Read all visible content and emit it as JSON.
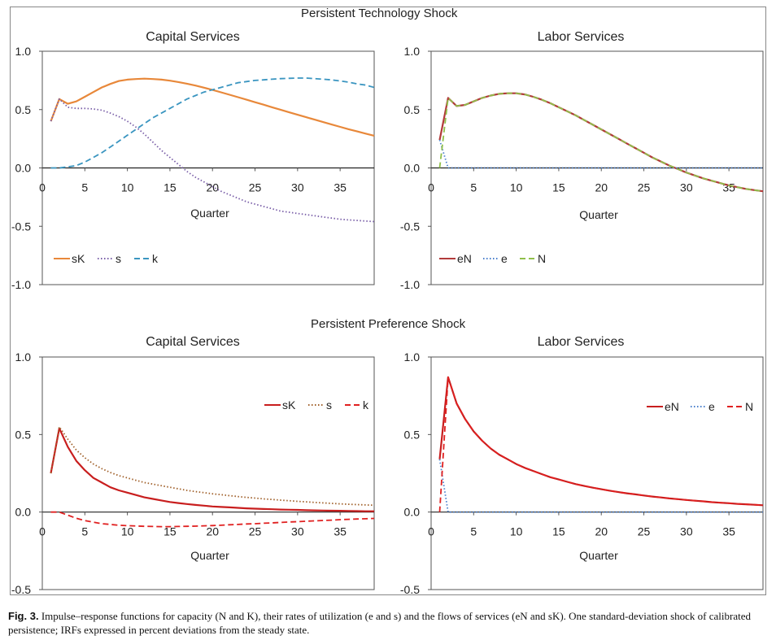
{
  "section_titles": {
    "top": "Persistent Technology Shock",
    "bottom": "Persistent Preference Shock"
  },
  "caption": {
    "label": "Fig. 3.",
    "text": " Impulse–response functions for capacity (N and K), their rates of utilization (e and s) and the flows of services (eN and sK). One standard-deviation shock of calibrated persistence; IRFs expressed in percent deviations from the steady state."
  },
  "colors": {
    "orange": "#E8883A",
    "purple": "#7A5FA8",
    "teal": "#3A95C0",
    "maroon": "#B23A3A",
    "blue_dot": "#4A7FCC",
    "green_dash": "#8FBF4A",
    "red": "#D42020",
    "brown_dot": "#A0602A"
  },
  "chart_data": [
    {
      "type": "line",
      "title": "Capital Services",
      "xlabel": "Quarter",
      "xlim": [
        0,
        39
      ],
      "ylim": [
        -1.0,
        1.0
      ],
      "xticks": [
        0,
        5,
        10,
        15,
        20,
        25,
        30,
        35
      ],
      "yticks": [
        "1.0",
        "0.5",
        "0.0",
        "-0.5",
        "-1.0"
      ],
      "legend_position": "bottom-left",
      "x": [
        1,
        2,
        3,
        4,
        5,
        6,
        7,
        8,
        9,
        10,
        11,
        12,
        13,
        14,
        15,
        16,
        17,
        18,
        19,
        20,
        21,
        22,
        23,
        24,
        25,
        26,
        27,
        28,
        29,
        30,
        31,
        32,
        33,
        34,
        35,
        36,
        37,
        38,
        39
      ],
      "series": [
        {
          "name": "sK",
          "style": "solid",
          "color": "#E8883A",
          "values": [
            0.4,
            0.59,
            0.55,
            0.57,
            0.61,
            0.65,
            0.69,
            0.72,
            0.745,
            0.757,
            0.762,
            0.765,
            0.762,
            0.757,
            0.748,
            0.736,
            0.722,
            0.706,
            0.688,
            0.668,
            0.648,
            0.627,
            0.606,
            0.585,
            0.563,
            0.542,
            0.52,
            0.499,
            0.477,
            0.456,
            0.435,
            0.414,
            0.393,
            0.372,
            0.352,
            0.332,
            0.313,
            0.294,
            0.276
          ]
        },
        {
          "name": "s",
          "style": "dotted",
          "color": "#7A5FA8",
          "values": [
            0.4,
            0.59,
            0.52,
            0.51,
            0.51,
            0.505,
            0.495,
            0.47,
            0.44,
            0.4,
            0.35,
            0.29,
            0.22,
            0.15,
            0.09,
            0.03,
            -0.03,
            -0.08,
            -0.12,
            -0.16,
            -0.2,
            -0.23,
            -0.26,
            -0.29,
            -0.31,
            -0.33,
            -0.35,
            -0.37,
            -0.38,
            -0.39,
            -0.4,
            -0.41,
            -0.42,
            -0.43,
            -0.44,
            -0.445,
            -0.45,
            -0.455,
            -0.46
          ]
        },
        {
          "name": "k",
          "style": "dashed",
          "color": "#3A95C0",
          "values": [
            0.0,
            0.0,
            0.01,
            0.02,
            0.05,
            0.09,
            0.13,
            0.18,
            0.23,
            0.28,
            0.33,
            0.38,
            0.43,
            0.47,
            0.51,
            0.55,
            0.59,
            0.62,
            0.65,
            0.67,
            0.69,
            0.71,
            0.73,
            0.74,
            0.75,
            0.755,
            0.76,
            0.765,
            0.768,
            0.77,
            0.77,
            0.765,
            0.76,
            0.755,
            0.745,
            0.735,
            0.72,
            0.71,
            0.69
          ]
        }
      ]
    },
    {
      "type": "line",
      "title": "Labor Services",
      "xlabel": "Quarter",
      "xlim": [
        0,
        39
      ],
      "ylim": [
        -1.0,
        1.0
      ],
      "xticks": [
        0,
        5,
        10,
        15,
        20,
        25,
        30,
        35
      ],
      "yticks": [
        "1.0",
        "0.5",
        "0.0",
        "-0.5",
        "-1.0"
      ],
      "legend_position": "bottom-left",
      "x": [
        1,
        2,
        3,
        4,
        5,
        6,
        7,
        8,
        9,
        10,
        11,
        12,
        13,
        14,
        15,
        16,
        17,
        18,
        19,
        20,
        21,
        22,
        23,
        24,
        25,
        26,
        27,
        28,
        29,
        30,
        31,
        32,
        33,
        34,
        35,
        36,
        37,
        38,
        39
      ],
      "series": [
        {
          "name": "eN",
          "style": "solid",
          "color": "#B23A3A",
          "values": [
            0.24,
            0.6,
            0.53,
            0.54,
            0.57,
            0.6,
            0.62,
            0.635,
            0.64,
            0.64,
            0.63,
            0.61,
            0.585,
            0.555,
            0.52,
            0.485,
            0.45,
            0.41,
            0.37,
            0.33,
            0.29,
            0.25,
            0.21,
            0.17,
            0.13,
            0.09,
            0.055,
            0.02,
            -0.01,
            -0.04,
            -0.065,
            -0.09,
            -0.11,
            -0.13,
            -0.15,
            -0.165,
            -0.18,
            -0.19,
            -0.2
          ]
        },
        {
          "name": "e",
          "style": "dotted",
          "color": "#4A7FCC",
          "values": [
            0.24,
            0.0,
            0.0,
            0.0,
            0.0,
            0.0,
            0.0,
            0.0,
            0.0,
            0.0,
            0.0,
            0.0,
            0.0,
            0.0,
            0.0,
            0.0,
            0.0,
            0.0,
            0.0,
            0.0,
            0.0,
            0.0,
            0.0,
            0.0,
            0.0,
            0.0,
            0.0,
            0.0,
            0.0,
            0.0,
            0.0,
            0.0,
            0.0,
            0.0,
            0.0,
            0.0,
            0.0,
            0.0,
            0.0
          ]
        },
        {
          "name": "N",
          "style": "dashed",
          "color": "#8FBF4A",
          "values": [
            0.0,
            0.6,
            0.53,
            0.54,
            0.57,
            0.6,
            0.62,
            0.635,
            0.64,
            0.64,
            0.63,
            0.61,
            0.585,
            0.555,
            0.52,
            0.485,
            0.45,
            0.41,
            0.37,
            0.33,
            0.29,
            0.25,
            0.21,
            0.17,
            0.13,
            0.09,
            0.055,
            0.02,
            -0.01,
            -0.04,
            -0.065,
            -0.09,
            -0.11,
            -0.13,
            -0.15,
            -0.165,
            -0.18,
            -0.19,
            -0.2
          ]
        }
      ]
    },
    {
      "type": "line",
      "title": "Capital Services",
      "xlabel": "Quarter",
      "xlim": [
        0,
        39
      ],
      "ylim": [
        -0.5,
        1.0
      ],
      "xticks": [
        0,
        5,
        10,
        15,
        20,
        25,
        30,
        35
      ],
      "yticks": [
        "1.0",
        "0.5",
        "0.0",
        "-0.5"
      ],
      "legend_position": "top-right",
      "x": [
        1,
        2,
        3,
        4,
        5,
        6,
        7,
        8,
        9,
        10,
        11,
        12,
        13,
        14,
        15,
        16,
        17,
        18,
        19,
        20,
        21,
        22,
        23,
        24,
        25,
        26,
        27,
        28,
        29,
        30,
        31,
        32,
        33,
        34,
        35,
        36,
        37,
        38,
        39
      ],
      "series": [
        {
          "name": "sK",
          "style": "solid",
          "color": "#C81E1E",
          "values": [
            0.25,
            0.54,
            0.42,
            0.33,
            0.27,
            0.22,
            0.19,
            0.16,
            0.14,
            0.125,
            0.11,
            0.095,
            0.085,
            0.075,
            0.065,
            0.058,
            0.052,
            0.046,
            0.041,
            0.036,
            0.033,
            0.03,
            0.027,
            0.024,
            0.022,
            0.02,
            0.018,
            0.016,
            0.015,
            0.014,
            0.012,
            0.011,
            0.01,
            0.009,
            0.008,
            0.007,
            0.006,
            0.005,
            0.005
          ]
        },
        {
          "name": "s",
          "style": "dotted",
          "color": "#A0602A",
          "values": [
            0.25,
            0.55,
            0.47,
            0.4,
            0.35,
            0.31,
            0.28,
            0.255,
            0.235,
            0.22,
            0.205,
            0.19,
            0.18,
            0.17,
            0.16,
            0.15,
            0.14,
            0.132,
            0.125,
            0.118,
            0.112,
            0.106,
            0.1,
            0.095,
            0.09,
            0.085,
            0.081,
            0.077,
            0.073,
            0.069,
            0.066,
            0.062,
            0.059,
            0.056,
            0.053,
            0.05,
            0.048,
            0.046,
            0.044
          ]
        },
        {
          "name": "k",
          "style": "dashed",
          "color": "#E02020",
          "values": [
            0.0,
            0.0,
            -0.02,
            -0.04,
            -0.055,
            -0.065,
            -0.075,
            -0.08,
            -0.085,
            -0.088,
            -0.09,
            -0.092,
            -0.093,
            -0.094,
            -0.094,
            -0.093,
            -0.092,
            -0.091,
            -0.089,
            -0.087,
            -0.085,
            -0.082,
            -0.08,
            -0.077,
            -0.075,
            -0.072,
            -0.07,
            -0.067,
            -0.064,
            -0.062,
            -0.059,
            -0.057,
            -0.054,
            -0.052,
            -0.049,
            -0.047,
            -0.045,
            -0.043,
            -0.041
          ]
        }
      ]
    },
    {
      "type": "line",
      "title": "Labor Services",
      "xlabel": "Quarter",
      "xlim": [
        0,
        39
      ],
      "ylim": [
        -0.5,
        1.0
      ],
      "xticks": [
        0,
        5,
        10,
        15,
        20,
        25,
        30,
        35
      ],
      "yticks": [
        "1.0",
        "0.5",
        "0.0",
        "-0.5"
      ],
      "legend_position": "top-right",
      "x": [
        1,
        2,
        3,
        4,
        5,
        6,
        7,
        8,
        9,
        10,
        11,
        12,
        13,
        14,
        15,
        16,
        17,
        18,
        19,
        20,
        21,
        22,
        23,
        24,
        25,
        26,
        27,
        28,
        29,
        30,
        31,
        32,
        33,
        34,
        35,
        36,
        37,
        38,
        39
      ],
      "series": [
        {
          "name": "eN",
          "style": "solid",
          "color": "#C81E1E",
          "values": [
            0.34,
            0.87,
            0.7,
            0.6,
            0.52,
            0.46,
            0.41,
            0.37,
            0.34,
            0.31,
            0.285,
            0.265,
            0.245,
            0.225,
            0.21,
            0.195,
            0.18,
            0.168,
            0.157,
            0.147,
            0.138,
            0.129,
            0.121,
            0.114,
            0.107,
            0.1,
            0.094,
            0.088,
            0.083,
            0.078,
            0.073,
            0.069,
            0.064,
            0.06,
            0.057,
            0.053,
            0.05,
            0.047,
            0.044
          ]
        },
        {
          "name": "e",
          "style": "dotted",
          "color": "#4A7FCC",
          "values": [
            0.34,
            0.0,
            0.0,
            0.0,
            0.0,
            0.0,
            0.0,
            0.0,
            0.0,
            0.0,
            0.0,
            0.0,
            0.0,
            0.0,
            0.0,
            0.0,
            0.0,
            0.0,
            0.0,
            0.0,
            0.0,
            0.0,
            0.0,
            0.0,
            0.0,
            0.0,
            0.0,
            0.0,
            0.0,
            0.0,
            0.0,
            0.0,
            0.0,
            0.0,
            0.0,
            0.0,
            0.0,
            0.0,
            0.0
          ]
        },
        {
          "name": "N",
          "style": "dashed",
          "color": "#E02020",
          "values": [
            0.0,
            0.87,
            0.7,
            0.6,
            0.52,
            0.46,
            0.41,
            0.37,
            0.34,
            0.31,
            0.285,
            0.265,
            0.245,
            0.225,
            0.21,
            0.195,
            0.18,
            0.168,
            0.157,
            0.147,
            0.138,
            0.129,
            0.121,
            0.114,
            0.107,
            0.1,
            0.094,
            0.088,
            0.083,
            0.078,
            0.073,
            0.069,
            0.064,
            0.06,
            0.057,
            0.053,
            0.05,
            0.047,
            0.044
          ]
        }
      ]
    }
  ]
}
